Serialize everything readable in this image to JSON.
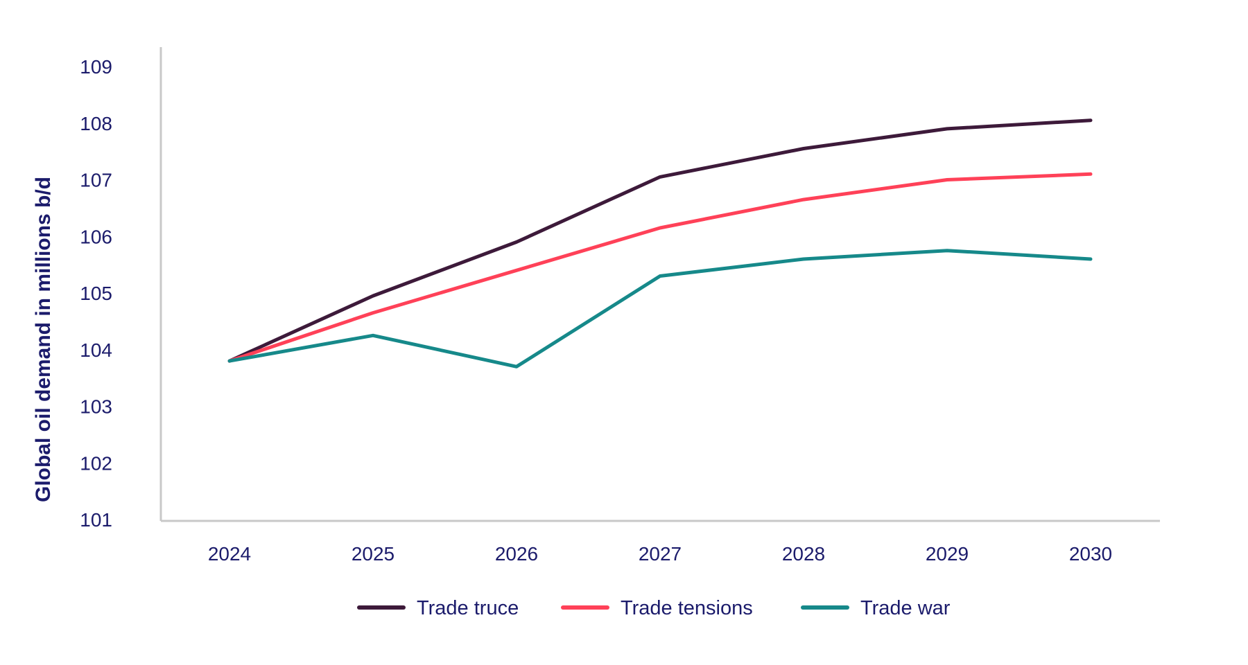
{
  "chart_data": {
    "type": "line",
    "title": "",
    "xlabel": "",
    "ylabel": "Global oil demand in millions b/d",
    "x": [
      "2024",
      "2025",
      "2026",
      "2027",
      "2028",
      "2029",
      "2030"
    ],
    "ylim": [
      101,
      109
    ],
    "yticks": [
      "101",
      "102",
      "103",
      "104",
      "105",
      "106",
      "107",
      "108",
      "109"
    ],
    "grid": false,
    "legend_position": "bottom-center",
    "series": [
      {
        "name": "Trade truce",
        "color": "#3d1a3a",
        "values": [
          103.8,
          104.95,
          105.9,
          107.05,
          107.55,
          107.9,
          108.05
        ]
      },
      {
        "name": "Trade tensions",
        "color": "#ff4158",
        "values": [
          103.8,
          104.65,
          105.4,
          106.15,
          106.65,
          107.0,
          107.1
        ]
      },
      {
        "name": "Trade war",
        "color": "#16898a",
        "values": [
          103.8,
          104.25,
          103.7,
          105.3,
          105.6,
          105.75,
          105.6
        ]
      }
    ]
  }
}
